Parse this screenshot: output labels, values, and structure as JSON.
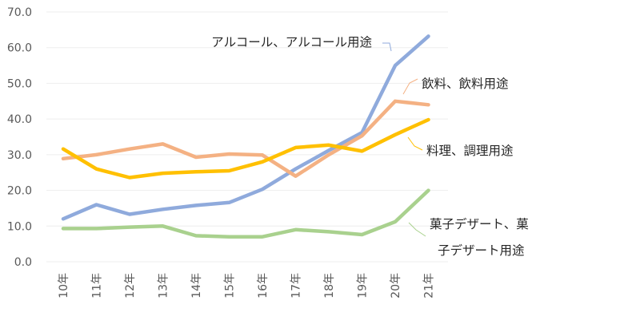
{
  "chart_data": {
    "type": "line",
    "categories": [
      "10年",
      "11年",
      "12年",
      "13年",
      "14年",
      "15年",
      "16年",
      "17年",
      "18年",
      "19年",
      "20年",
      "21年"
    ],
    "ylim": [
      0,
      70
    ],
    "yticks": [
      "0.0",
      "10.0",
      "20.0",
      "30.0",
      "40.0",
      "50.0",
      "60.0",
      "70.0"
    ],
    "grid": true,
    "legend": "data-callouts",
    "series": [
      {
        "name": "アルコール、アルコール用途",
        "color": "#8faadc",
        "values": [
          12.0,
          16.0,
          13.3,
          14.7,
          15.8,
          16.6,
          20.3,
          26.0,
          31.2,
          36.2,
          55.0,
          63.2
        ]
      },
      {
        "name": "飲料、飲料用途",
        "color": "#f4b183",
        "values": [
          28.9,
          30.0,
          31.6,
          33.0,
          29.3,
          30.2,
          29.9,
          24.0,
          30.0,
          35.3,
          45.0,
          44.0
        ]
      },
      {
        "name": "料理、調理用途",
        "color": "#ffc000",
        "values": [
          31.6,
          26.0,
          23.6,
          24.8,
          25.2,
          25.5,
          28.0,
          32.0,
          32.7,
          31.0,
          35.6,
          39.8
        ]
      },
      {
        "name": "菓子デザート、菓子デザート用途",
        "name_lines": [
          "菓子デザート、菓",
          "子デザート用途"
        ],
        "color": "#a9d18e",
        "values": [
          9.3,
          9.3,
          9.7,
          10.0,
          7.3,
          7.0,
          7.0,
          9.0,
          8.4,
          7.6,
          11.2,
          20.0
        ]
      }
    ]
  }
}
